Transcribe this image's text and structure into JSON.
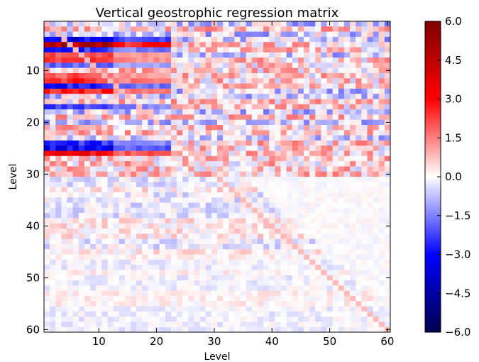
{
  "chart_data": {
    "type": "heatmap",
    "title": "Vertical geostrophic regression matrix",
    "xlabel": "Level",
    "ylabel": "Level",
    "x_range": [
      1,
      60
    ],
    "y_range": [
      1,
      60
    ],
    "y_inverted": true,
    "x_ticks": [
      "10",
      "20",
      "30",
      "40",
      "50",
      "60"
    ],
    "y_ticks": [
      "10",
      "20",
      "30",
      "40",
      "50",
      "60"
    ],
    "colormap": "seismic",
    "colorbar": {
      "range": [
        -6.0,
        6.0
      ],
      "ticks": [
        "6.0",
        "4.5",
        "3.0",
        "1.5",
        "0.0",
        "−1.5",
        "−3.0",
        "−4.5",
        "−6.0"
      ],
      "colors": [
        "#00004c",
        "#0000ff",
        "#ffffff",
        "#ff0000",
        "#800000"
      ]
    },
    "diagonal_value": 0.8,
    "dominant_rows": [
      {
        "level": 4,
        "values_near_levels_1_to_20": "strong negative (~-3 to -5)"
      },
      {
        "level": 5,
        "values_near_levels_1_to_10": "strong positive (~+5 to +6)"
      },
      {
        "level": 13,
        "values_near_levels_1_to_30": "strong positive/negative (~±3 to ±4)"
      },
      {
        "level": 14,
        "values_near_levels_1_to_30": "strong positive (~+3)"
      },
      {
        "level": 25,
        "values_near_levels_1_to_10": "strong negative (~-4)"
      },
      {
        "level": 26,
        "values_near_levels_1_to_10": "strong positive (~+4)"
      }
    ]
  }
}
